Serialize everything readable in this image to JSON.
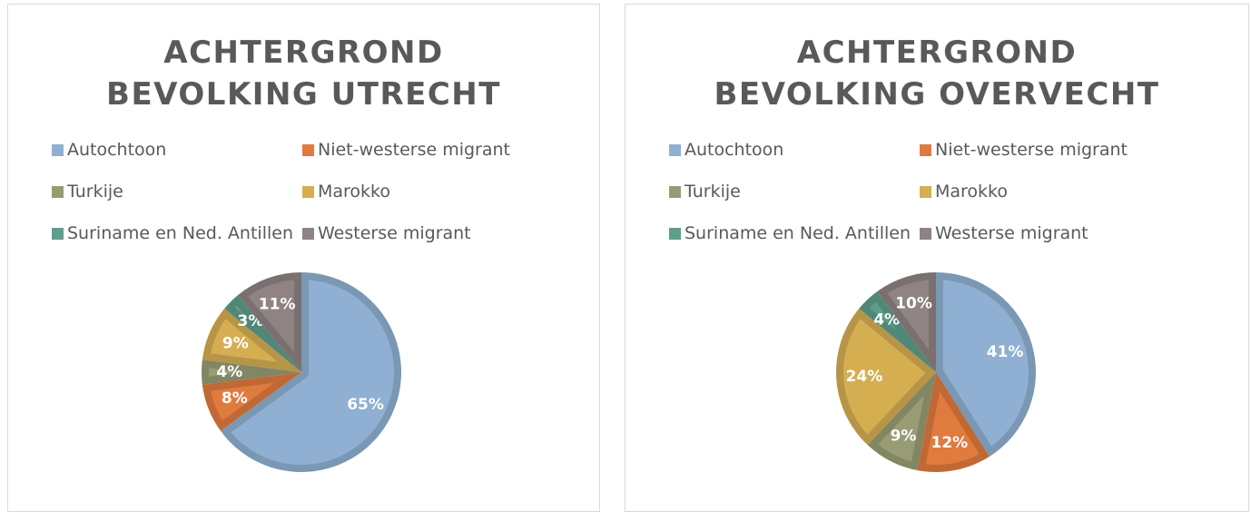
{
  "chart_data": [
    {
      "type": "pie",
      "title": "ACHTERGROND BEVOLKING UTRECHT",
      "categories": [
        "Autochtoon",
        "Niet-westerse migrant",
        "Turkije",
        "Marokko",
        "Suriname en Ned. Antillen",
        "Westerse migrant"
      ],
      "values": [
        65,
        8,
        4,
        9,
        3,
        11
      ],
      "value_labels": [
        "65%",
        "8%",
        "4%",
        "9%",
        "3%",
        "11%"
      ],
      "colors": [
        "#8fb0d2",
        "#e07b3e",
        "#989c74",
        "#d6ae52",
        "#5f9e8c",
        "#8f8383"
      ]
    },
    {
      "type": "pie",
      "title": "ACHTERGROND BEVOLKING OVERVECHT",
      "categories": [
        "Autochtoon",
        "Niet-westerse migrant",
        "Turkije",
        "Marokko",
        "Suriname en Ned. Antillen",
        "Westerse migrant"
      ],
      "values": [
        41,
        12,
        9,
        24,
        4,
        10
      ],
      "value_labels": [
        "41%",
        "12%",
        "9%",
        "24%",
        "4%",
        "10%"
      ],
      "colors": [
        "#8fb0d2",
        "#e07b3e",
        "#989c74",
        "#d6ae52",
        "#5f9e8c",
        "#8f8383"
      ]
    }
  ]
}
